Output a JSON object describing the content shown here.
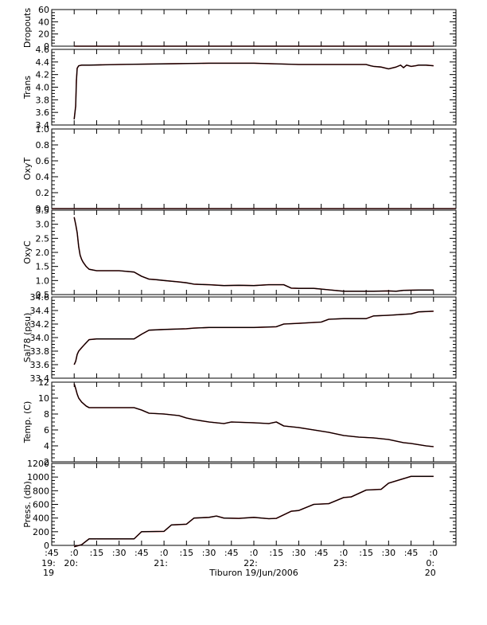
{
  "figure": {
    "caption": "Tiburon 19/Jun/2006",
    "x_ticks": [
      {
        "t": -15,
        "line1": ":45",
        "line2": "19:",
        "line3": "19"
      },
      {
        "t": 0,
        "line1": ":0",
        "line2": "20:",
        "line3": ""
      },
      {
        "t": 15,
        "line1": ":15",
        "line2": "",
        "line3": ""
      },
      {
        "t": 30,
        "line1": ":30",
        "line2": "",
        "line3": ""
      },
      {
        "t": 45,
        "line1": ":45",
        "line2": "",
        "line3": ""
      },
      {
        "t": 60,
        "line1": ":0",
        "line2": "21:",
        "line3": ""
      },
      {
        "t": 75,
        "line1": ":15",
        "line2": "",
        "line3": ""
      },
      {
        "t": 90,
        "line1": ":30",
        "line2": "",
        "line3": ""
      },
      {
        "t": 105,
        "line1": ":45",
        "line2": "",
        "line3": ""
      },
      {
        "t": 120,
        "line1": ":0",
        "line2": "22:",
        "line3": ""
      },
      {
        "t": 135,
        "line1": ":15",
        "line2": "",
        "line3": ""
      },
      {
        "t": 150,
        "line1": ":30",
        "line2": "",
        "line3": ""
      },
      {
        "t": 165,
        "line1": ":45",
        "line2": "",
        "line3": ""
      },
      {
        "t": 180,
        "line1": ":0",
        "line2": "23:",
        "line3": ""
      },
      {
        "t": 195,
        "line1": ":15",
        "line2": "",
        "line3": ""
      },
      {
        "t": 210,
        "line1": ":30",
        "line2": "",
        "line3": ""
      },
      {
        "t": 225,
        "line1": ":45",
        "line2": "",
        "line3": ""
      },
      {
        "t": 240,
        "line1": ":0",
        "line2": "0:",
        "line3": "20"
      }
    ],
    "colors": {
      "trace": "#000000",
      "noise": "#cc0000",
      "axis": "#000000"
    }
  },
  "chart_data": [
    {
      "type": "line",
      "ylabel": "Dropouts",
      "ylim": [
        0,
        60
      ],
      "xlim": [
        -15,
        255
      ],
      "yticks": [
        "60",
        "40",
        "20",
        "0"
      ],
      "ytick_values": [
        60,
        40,
        20,
        0
      ],
      "series": [
        {
          "x": [
            0,
            240
          ],
          "y": [
            0,
            0
          ]
        }
      ]
    },
    {
      "type": "line",
      "ylabel": "Trans",
      "ylim": [
        3.4,
        4.6
      ],
      "xlim": [
        -15,
        255
      ],
      "yticks": [
        "4.6",
        "4.4",
        "4.2",
        "4.0",
        "3.8",
        "3.6",
        "3.4"
      ],
      "ytick_values": [
        4.6,
        4.4,
        4.2,
        4.0,
        3.8,
        3.6,
        3.4
      ],
      "series": [
        {
          "x": [
            0,
            1,
            1.5,
            2,
            3,
            5,
            10,
            30,
            60,
            90,
            120,
            150,
            180,
            195,
            198,
            200,
            205,
            210,
            215,
            218,
            220,
            222,
            225,
            228,
            230,
            235,
            240
          ],
          "y": [
            3.49,
            3.7,
            4.1,
            4.3,
            4.34,
            4.35,
            4.35,
            4.36,
            4.37,
            4.38,
            4.38,
            4.36,
            4.36,
            4.36,
            4.34,
            4.33,
            4.32,
            4.29,
            4.32,
            4.35,
            4.31,
            4.35,
            4.33,
            4.34,
            4.35,
            4.35,
            4.34
          ]
        }
      ]
    },
    {
      "type": "line",
      "ylabel": "OxyT",
      "ylim": [
        0,
        1.0
      ],
      "xlim": [
        -15,
        255
      ],
      "yticks": [
        "1.0",
        "0.8",
        "0.6",
        "0.4",
        "0.2",
        "0.0"
      ],
      "ytick_values": [
        1.0,
        0.8,
        0.6,
        0.4,
        0.2,
        0.0
      ],
      "series": [
        {
          "x": [
            -15,
            255
          ],
          "y": [
            0,
            0
          ]
        }
      ]
    },
    {
      "type": "line",
      "ylabel": "OxyC",
      "ylim": [
        0.5,
        3.5
      ],
      "xlim": [
        -15,
        255
      ],
      "yticks": [
        "3.5",
        "3.0",
        "2.5",
        "2.0",
        "1.5",
        "1.0",
        "0.5"
      ],
      "ytick_values": [
        3.5,
        3.0,
        2.5,
        2.0,
        1.5,
        1.0,
        0.5
      ],
      "series": [
        {
          "x": [
            0,
            1,
            2,
            3,
            4,
            5,
            6,
            8,
            10,
            15,
            30,
            40,
            45,
            50,
            55,
            60,
            70,
            75,
            80,
            85,
            90,
            100,
            110,
            120,
            130,
            140,
            145,
            150,
            160,
            170,
            180,
            190,
            200,
            210,
            215,
            220,
            230,
            240
          ],
          "y": [
            3.25,
            3.0,
            2.7,
            2.2,
            1.9,
            1.75,
            1.65,
            1.5,
            1.4,
            1.35,
            1.35,
            1.3,
            1.15,
            1.05,
            1.03,
            1.0,
            0.95,
            0.92,
            0.87,
            0.86,
            0.85,
            0.82,
            0.83,
            0.82,
            0.85,
            0.85,
            0.73,
            0.72,
            0.72,
            0.67,
            0.62,
            0.62,
            0.62,
            0.63,
            0.62,
            0.65,
            0.66,
            0.66
          ]
        }
      ]
    },
    {
      "type": "line",
      "ylabel": "Sal78 (psu)",
      "ylim": [
        33.4,
        34.6
      ],
      "xlim": [
        -15,
        255
      ],
      "yticks": [
        "34.6",
        "34.4",
        "34.2",
        "34.0",
        "33.8",
        "33.6",
        "33.4"
      ],
      "ytick_values": [
        34.6,
        34.4,
        34.2,
        34.0,
        33.8,
        33.6,
        33.4
      ],
      "series": [
        {
          "x": [
            0,
            1,
            2,
            3,
            5,
            7,
            10,
            15,
            30,
            40,
            45,
            50,
            60,
            75,
            80,
            90,
            120,
            135,
            140,
            150,
            165,
            170,
            180,
            195,
            200,
            210,
            225,
            230,
            240
          ],
          "y": [
            33.6,
            33.65,
            33.75,
            33.8,
            33.85,
            33.9,
            33.97,
            33.98,
            33.98,
            33.98,
            34.05,
            34.11,
            34.12,
            34.13,
            34.14,
            34.15,
            34.15,
            34.16,
            34.2,
            34.21,
            34.23,
            34.27,
            34.28,
            34.28,
            34.32,
            34.33,
            34.35,
            34.38,
            34.39
          ]
        }
      ]
    },
    {
      "type": "line",
      "ylabel": "Temp. (C)",
      "ylim": [
        2,
        12
      ],
      "xlim": [
        -15,
        255
      ],
      "yticks": [
        "12",
        "10",
        "8",
        "6",
        "4",
        "2"
      ],
      "ytick_values": [
        12,
        10,
        8,
        6,
        4,
        2
      ],
      "series": [
        {
          "x": [
            0,
            1,
            2,
            3,
            5,
            8,
            10,
            30,
            40,
            45,
            50,
            60,
            70,
            75,
            80,
            90,
            100,
            105,
            120,
            130,
            135,
            140,
            150,
            160,
            170,
            180,
            190,
            200,
            210,
            220,
            225,
            235,
            240
          ],
          "y": [
            11.8,
            11.2,
            10.5,
            10.0,
            9.5,
            9.0,
            8.8,
            8.8,
            8.8,
            8.5,
            8.1,
            8.0,
            7.8,
            7.5,
            7.3,
            7.0,
            6.8,
            7.0,
            6.9,
            6.8,
            7.0,
            6.5,
            6.3,
            6.0,
            5.7,
            5.3,
            5.1,
            5.0,
            4.8,
            4.4,
            4.3,
            4.0,
            3.9
          ]
        }
      ]
    },
    {
      "type": "line",
      "ylabel": "Press. (db)",
      "ylim": [
        0,
        1200
      ],
      "xlim": [
        -15,
        255
      ],
      "yticks": [
        "1200",
        "1000",
        "800",
        "600",
        "400",
        "200",
        "0"
      ],
      "ytick_values": [
        1200,
        1000,
        800,
        600,
        400,
        200,
        0
      ],
      "series": [
        {
          "x": [
            0,
            5,
            10,
            40,
            45,
            60,
            65,
            75,
            80,
            90,
            95,
            100,
            110,
            120,
            130,
            135,
            145,
            150,
            160,
            170,
            180,
            185,
            195,
            205,
            210,
            225,
            240
          ],
          "y": [
            -20,
            10,
            95,
            95,
            200,
            205,
            300,
            310,
            400,
            410,
            430,
            400,
            395,
            410,
            390,
            395,
            500,
            510,
            600,
            610,
            700,
            710,
            810,
            820,
            910,
            1010,
            1010
          ]
        }
      ]
    }
  ]
}
